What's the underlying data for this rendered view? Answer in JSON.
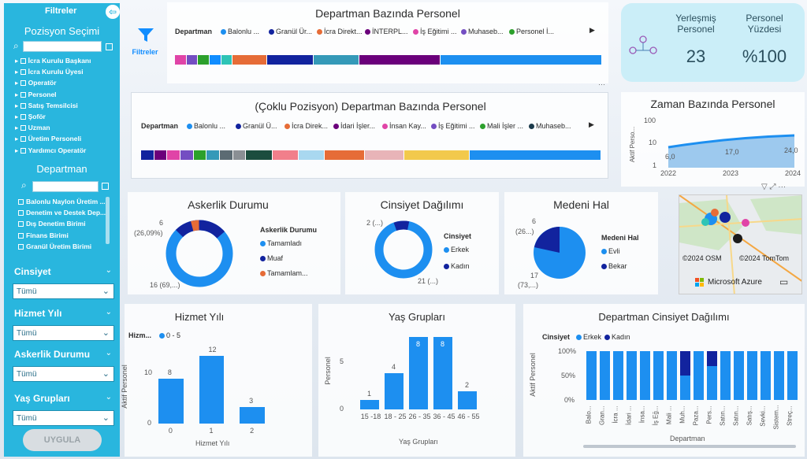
{
  "sidebar": {
    "header": "Filtreler",
    "pozisyon_title": "Pozisyon Seçimi",
    "pozisyon_items": [
      "İcra Kurulu Başkanı",
      "İcra Kurulu Üyesi",
      "Operatör",
      "Personel",
      "Satış Temsilcisi",
      "Şoför",
      "Uzman",
      "Üretim Personeli",
      "Yardımcı Operatör"
    ],
    "departman_title": "Departman",
    "departman_items": [
      "Balonlu Naylon Üretim ...",
      "Denetim ve Destek Dep...",
      "Dış Denetim Birimi",
      "Finans Birimi",
      "Granül Üretim Birimi"
    ],
    "filters": [
      {
        "label": "Cinsiyet",
        "value": "Tümü"
      },
      {
        "label": "Hizmet Yılı",
        "value": "Tümü"
      },
      {
        "label": "Askerlik Durumu",
        "value": "Tümü"
      },
      {
        "label": "Yaş Grupları",
        "value": "Tümü"
      }
    ],
    "apply": "UYGULA"
  },
  "filtreler_label": "Filtreler",
  "kpi": {
    "yerlesmis_label": "Yerleşmiş Personel",
    "yerlesmis_value": "23",
    "yuzde_label": "Personel Yüzdesi",
    "yuzde_value": "%100"
  },
  "dept_chart": {
    "title": "Departman Bazında Personel",
    "legend_label": "Departman",
    "legend": [
      {
        "name": "Balonlu ...",
        "color": "#1d8ff0"
      },
      {
        "name": "Granül Ür...",
        "color": "#12239e"
      },
      {
        "name": "İcra Direkt...",
        "color": "#e66c37"
      },
      {
        "name": "İNTERPL...",
        "color": "#6b007b"
      },
      {
        "name": "İş Eğitimi ...",
        "color": "#e044a7"
      },
      {
        "name": "Muhaseb...",
        "color": "#744ec2"
      },
      {
        "name": "Personel İ...",
        "color": "#2ca02c"
      }
    ],
    "colors": [
      "#e044a7",
      "#744ec2",
      "#2ca02c",
      "#118dff",
      "#2ec4b6",
      "#e66c37",
      "#12239e",
      "#3599b8",
      "#6b007b",
      "#1d8ff0"
    ],
    "values": [
      1,
      1,
      1,
      1,
      1,
      3,
      4,
      4,
      7,
      14
    ]
  },
  "multi_chart": {
    "title": "(Çoklu Pozisyon) Departman Bazında Personel",
    "legend_label": "Departman",
    "legend": [
      {
        "name": "Balonlu ...",
        "color": "#1d8ff0"
      },
      {
        "name": "Granül Ü...",
        "color": "#12239e"
      },
      {
        "name": "İcra Direk...",
        "color": "#e66c37"
      },
      {
        "name": "İdari İşler...",
        "color": "#6b007b"
      },
      {
        "name": "İnsan Kay...",
        "color": "#e044a7"
      },
      {
        "name": "İş Eğitimi ...",
        "color": "#744ec2"
      },
      {
        "name": "Mali İşler ...",
        "color": "#2ca02c"
      },
      {
        "name": "Muhaseb...",
        "color": "#1b3a4b"
      }
    ],
    "colors": [
      "#12239e",
      "#6b007b",
      "#e044a7",
      "#744ec2",
      "#2ca02c",
      "#3599b8",
      "#5c6b73",
      "#8a8f94",
      "#1b4d3e",
      "#f17f8b",
      "#a9d8f0",
      "#e66c37",
      "#e8b4b8",
      "#f2c94c",
      "#1d8ff0"
    ],
    "values": [
      1,
      1,
      1,
      1,
      1,
      1,
      1,
      1,
      2,
      2,
      2,
      3,
      3,
      5,
      10
    ]
  },
  "zaman": {
    "title": "Zaman Bazında Personel",
    "ylabel": "Aktif Perso...",
    "ticks": [
      "100",
      "10",
      "1"
    ],
    "years": [
      "2022",
      "2023",
      "2024"
    ],
    "labels": [
      "6,0",
      "17,0",
      "24,0"
    ]
  },
  "askerlik": {
    "title": "Askerlik Durumu",
    "legend_title": "Askerlik Durumu",
    "legend": [
      "Tamamladı",
      "Muaf",
      "Tamamlam..."
    ],
    "top_label": "6",
    "top_pct": "(26,09%)",
    "bottom_label": "16 (69,...)"
  },
  "cinsiyet": {
    "title": "Cinsiyet Dağılımı",
    "legend_title": "Cinsiyet",
    "legend": [
      "Erkek",
      "Kadın"
    ],
    "small_label": "2 (...)",
    "big_label": "21 (...)"
  },
  "medeni": {
    "title": "Medeni Hal",
    "legend_title": "Medeni Hal",
    "legend": [
      "Evli",
      "Bekar"
    ],
    "top_label": "6",
    "top_pct": "(26...)",
    "bottom_label": "17",
    "bottom_pct": "(73,...)"
  },
  "map": {
    "osm": "©2024 OSM",
    "tomtom": "©2024 TomTom",
    "azure": "Microsoft Azure"
  },
  "chart_data": [
    {
      "type": "bar",
      "title": "Hizmet Yılı",
      "xlabel": "Hizmet Yılı",
      "ylabel": "Aktif Personel",
      "legend_label": "Hizm...",
      "series": [
        {
          "name": "0 - 5",
          "values": [
            8,
            12,
            3
          ]
        }
      ],
      "categories": [
        "0",
        "1",
        "2"
      ],
      "ticks": [
        "10",
        "0"
      ],
      "ylim": [
        0,
        14
      ]
    },
    {
      "type": "bar",
      "title": "Yaş Grupları",
      "xlabel": "Yaş Grupları",
      "ylabel": "Personel",
      "categories": [
        "15 -18",
        "18 - 25",
        "26 - 35",
        "36 - 45",
        "46 - 55"
      ],
      "values": [
        1,
        4,
        8,
        8,
        2
      ],
      "ticks": [
        "5",
        "0"
      ],
      "ylim": [
        0,
        9
      ]
    },
    {
      "type": "bar",
      "title": "Departman Cinsiyet Dağılımı",
      "xlabel": "Departman",
      "ylabel": "Aktif Personel",
      "legend_label": "Cinsiyet",
      "series": [
        {
          "name": "Erkek",
          "values": [
            100,
            100,
            100,
            100,
            100,
            100,
            100,
            50,
            100,
            70,
            100,
            100,
            100,
            100,
            100,
            100
          ]
        },
        {
          "name": "Kadın",
          "values": [
            0,
            0,
            0,
            0,
            0,
            0,
            0,
            50,
            0,
            30,
            0,
            0,
            0,
            0,
            0,
            0
          ]
        }
      ],
      "categories": [
        "Balo...",
        "Gran...",
        "İcra ...",
        "İdari ...",
        "İnsa...",
        "İş Eğ...",
        "Mali ...",
        "Muh...",
        "Paza...",
        "Pers...",
        "Satın...",
        "Satın...",
        "Satış...",
        "Sevki...",
        "Sistem...",
        "Streç..."
      ],
      "ticks": [
        "100%",
        "50%",
        "0%"
      ]
    }
  ]
}
